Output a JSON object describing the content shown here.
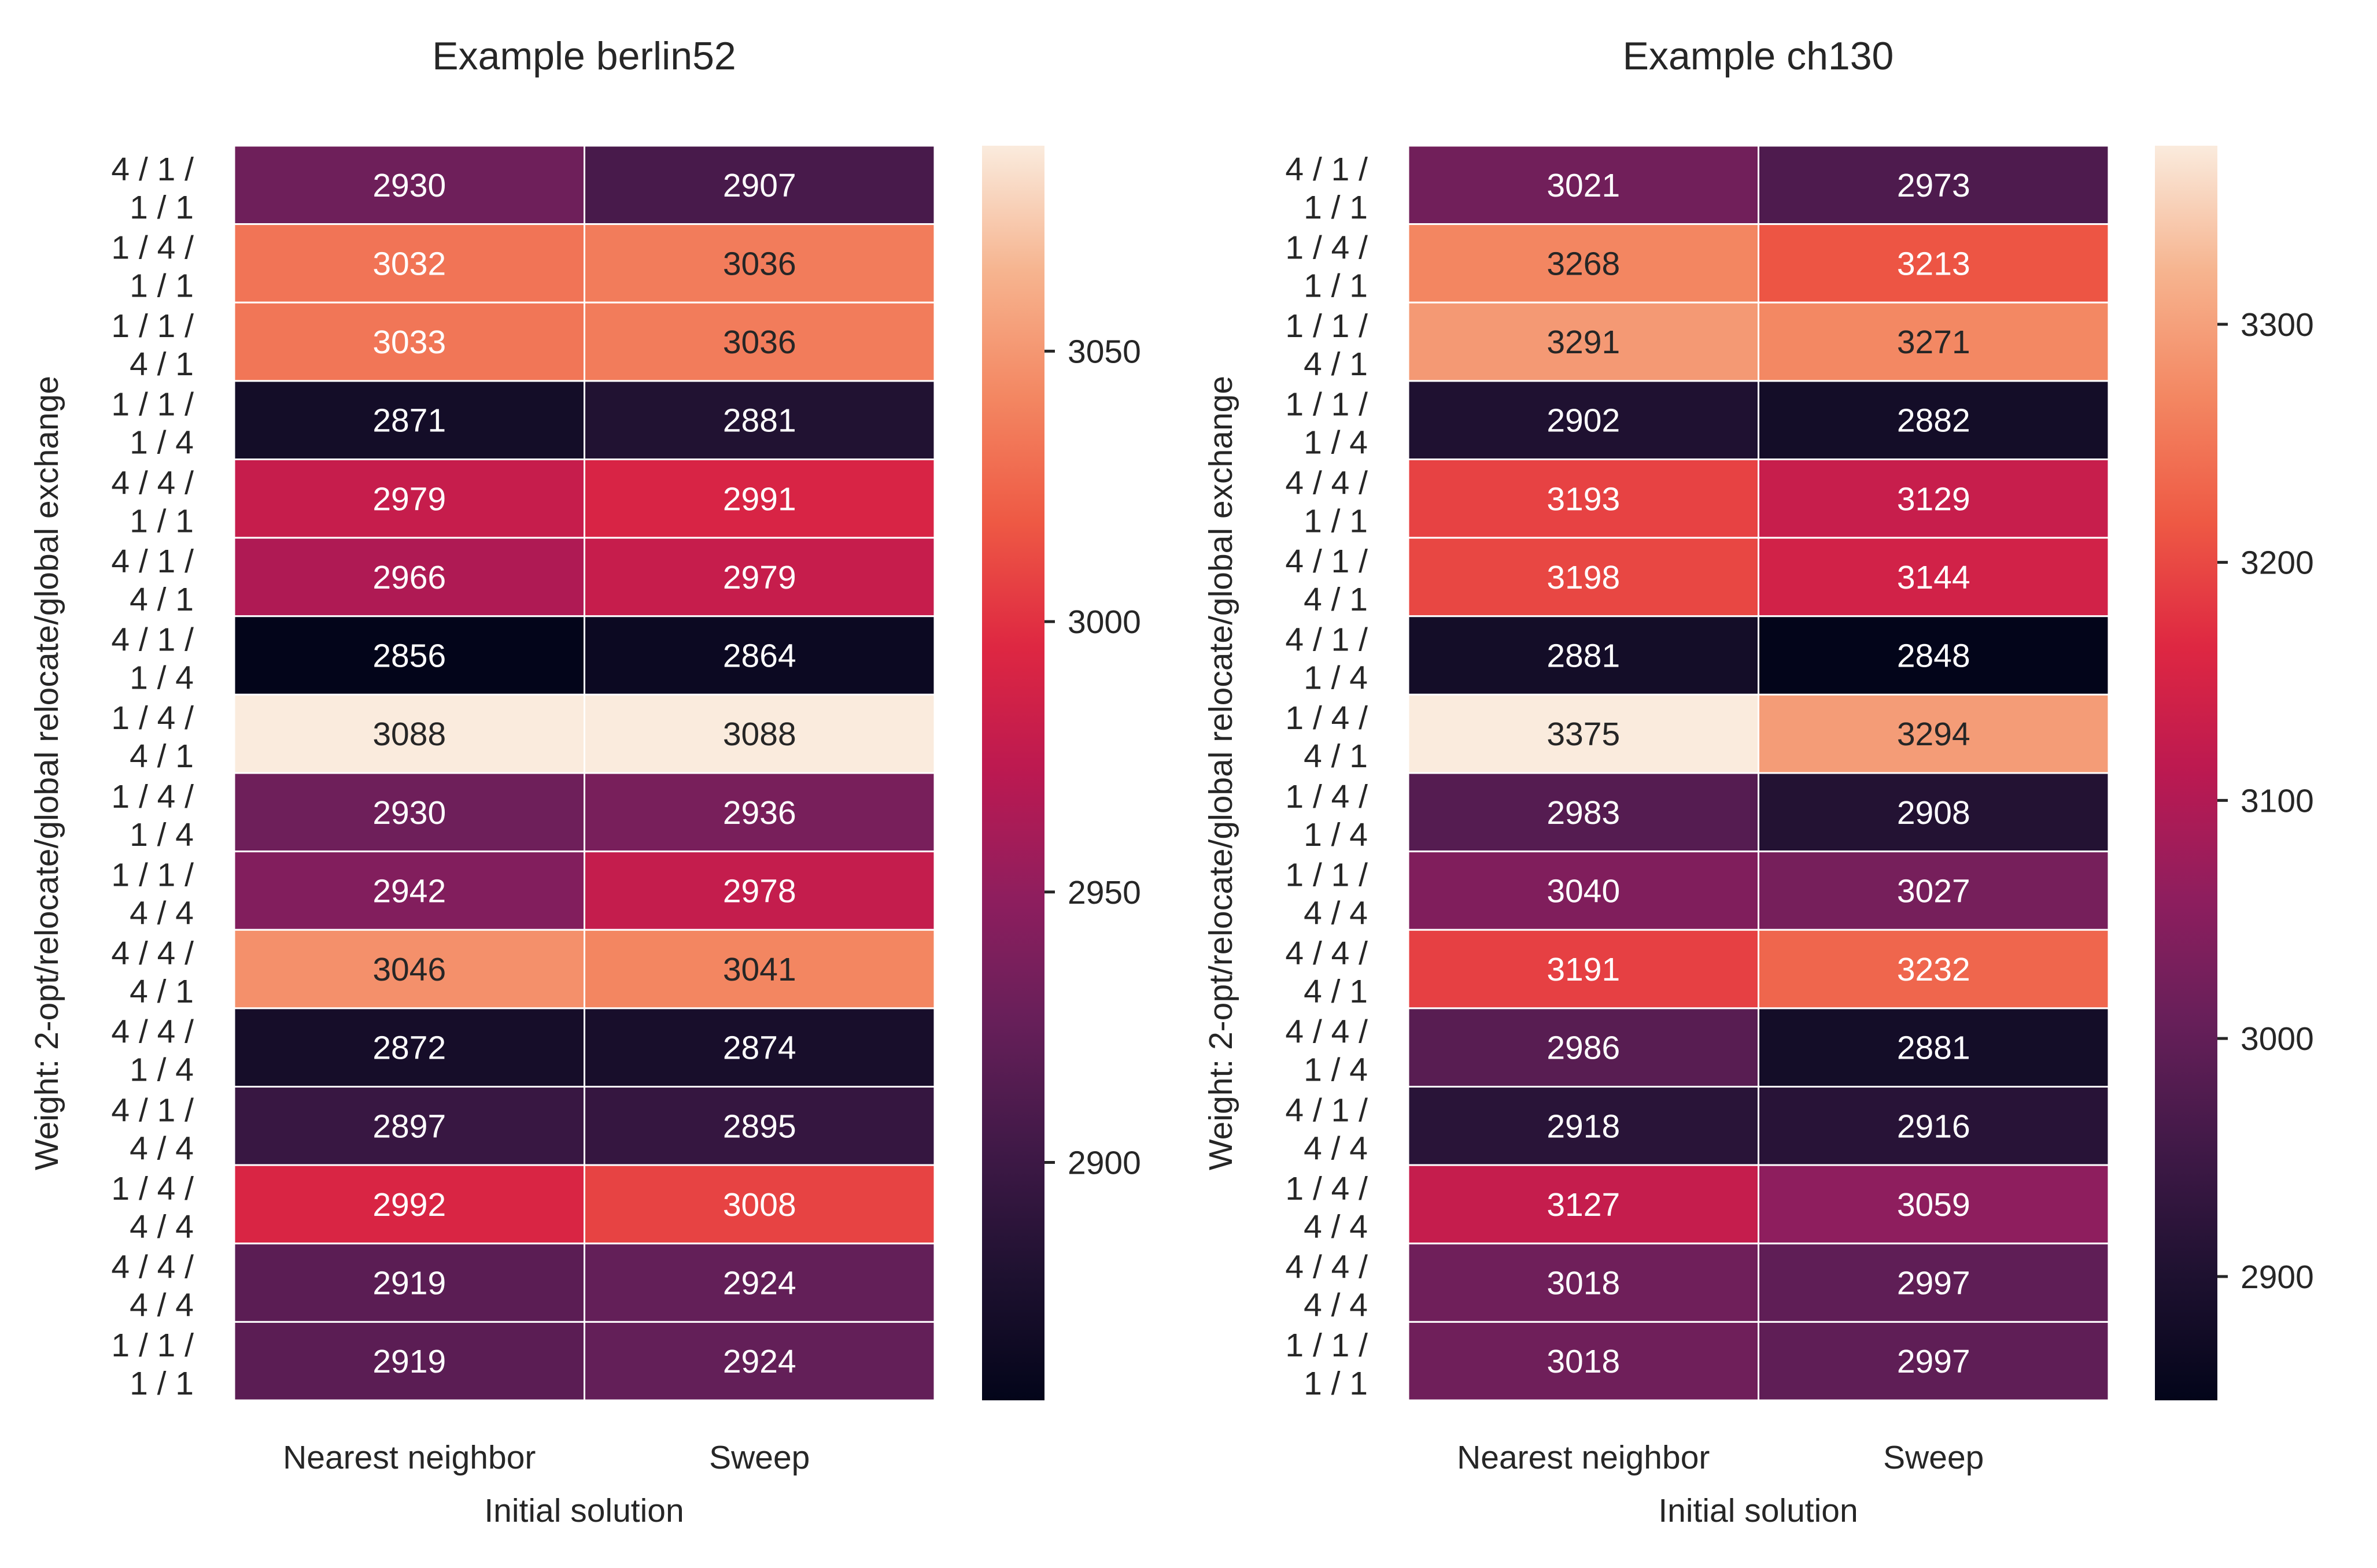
{
  "figure": {
    "background": "#ffffff"
  },
  "chart_data": [
    {
      "type": "heatmap",
      "title": "Example berlin52",
      "xlabel": "Initial solution",
      "ylabel": "Weight: 2-opt/relocate/global relocate/global exchange",
      "x_categories": [
        "Nearest neighbor",
        "Sweep"
      ],
      "y_categories": [
        [
          "4 / 1 /",
          "1 / 1"
        ],
        [
          "1 / 4 /",
          "1 / 1"
        ],
        [
          "1 / 1 /",
          "4 / 1"
        ],
        [
          "1 / 1 /",
          "1 / 4"
        ],
        [
          "4 / 4 /",
          "1 / 1"
        ],
        [
          "4 / 1 /",
          "4 / 1"
        ],
        [
          "4 / 1 /",
          "1 / 4"
        ],
        [
          "1 / 4 /",
          "4 / 1"
        ],
        [
          "1 / 4 /",
          "1 / 4"
        ],
        [
          "1 / 1 /",
          "4 / 4"
        ],
        [
          "4 / 4 /",
          "4 / 1"
        ],
        [
          "4 / 4 /",
          "1 / 4"
        ],
        [
          "4 / 1 /",
          "4 / 4"
        ],
        [
          "1 / 4 /",
          "4 / 4"
        ],
        [
          "4 / 4 /",
          "4 / 4"
        ],
        [
          "1 / 1 /",
          "1 / 1"
        ]
      ],
      "values": [
        [
          2930,
          2907
        ],
        [
          3032,
          3036
        ],
        [
          3033,
          3036
        ],
        [
          2871,
          2881
        ],
        [
          2979,
          2991
        ],
        [
          2966,
          2979
        ],
        [
          2856,
          2864
        ],
        [
          3088,
          3088
        ],
        [
          2930,
          2936
        ],
        [
          2942,
          2978
        ],
        [
          3046,
          3041
        ],
        [
          2872,
          2874
        ],
        [
          2897,
          2895
        ],
        [
          2992,
          3008
        ],
        [
          2919,
          2924
        ],
        [
          2919,
          2924
        ]
      ],
      "color_range": [
        2856,
        3088
      ],
      "colorbar_ticks": [
        2900,
        2950,
        3000,
        3050
      ],
      "colormap": "rocket"
    },
    {
      "type": "heatmap",
      "title": "Example ch130",
      "xlabel": "Initial solution",
      "ylabel": "Weight: 2-opt/relocate/global relocate/global exchange",
      "x_categories": [
        "Nearest neighbor",
        "Sweep"
      ],
      "y_categories": [
        [
          "4 / 1 /",
          "1 / 1"
        ],
        [
          "1 / 4 /",
          "1 / 1"
        ],
        [
          "1 / 1 /",
          "4 / 1"
        ],
        [
          "1 / 1 /",
          "1 / 4"
        ],
        [
          "4 / 4 /",
          "1 / 1"
        ],
        [
          "4 / 1 /",
          "4 / 1"
        ],
        [
          "4 / 1 /",
          "1 / 4"
        ],
        [
          "1 / 4 /",
          "4 / 1"
        ],
        [
          "1 / 4 /",
          "1 / 4"
        ],
        [
          "1 / 1 /",
          "4 / 4"
        ],
        [
          "4 / 4 /",
          "4 / 1"
        ],
        [
          "4 / 4 /",
          "1 / 4"
        ],
        [
          "4 / 1 /",
          "4 / 4"
        ],
        [
          "1 / 4 /",
          "4 / 4"
        ],
        [
          "4 / 4 /",
          "4 / 4"
        ],
        [
          "1 / 1 /",
          "1 / 1"
        ]
      ],
      "values": [
        [
          3021,
          2973
        ],
        [
          3268,
          3213
        ],
        [
          3291,
          3271
        ],
        [
          2902,
          2882
        ],
        [
          3193,
          3129
        ],
        [
          3198,
          3144
        ],
        [
          2881,
          2848
        ],
        [
          3375,
          3294
        ],
        [
          2983,
          2908
        ],
        [
          3040,
          3027
        ],
        [
          3191,
          3232
        ],
        [
          2986,
          2881
        ],
        [
          2918,
          2916
        ],
        [
          3127,
          3059
        ],
        [
          3018,
          2997
        ],
        [
          3018,
          2997
        ]
      ],
      "color_range": [
        2848,
        3375
      ],
      "colorbar_ticks": [
        2900,
        3000,
        3100,
        3200,
        3300
      ],
      "colormap": "rocket"
    }
  ]
}
